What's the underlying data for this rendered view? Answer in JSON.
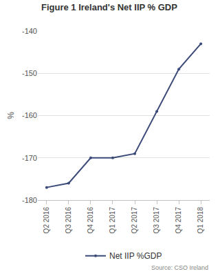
{
  "chart_data": {
    "type": "line",
    "title": "Figure 1 Ireland's Net IIP % GDP",
    "y_label": "%",
    "source": "Source: CSO Ireland",
    "categories": [
      "Q2 2016",
      "Q3 2016",
      "Q4 2016",
      "Q1 2017",
      "Q2 2017",
      "Q3 2017",
      "Q4 2017",
      "Q1 2018"
    ],
    "series": [
      {
        "name": "Net IIP %GDP",
        "color": "#3b4a78",
        "marker": "circle",
        "line_style": "solid",
        "values": [
          -177,
          -176,
          -170,
          -170,
          -169,
          -159,
          -149,
          -143
        ]
      }
    ],
    "ylim": [
      -180,
      -140
    ],
    "yticks": [
      -180,
      -170,
      -160,
      -150,
      -140
    ],
    "grid": true,
    "legend": "bottom"
  }
}
